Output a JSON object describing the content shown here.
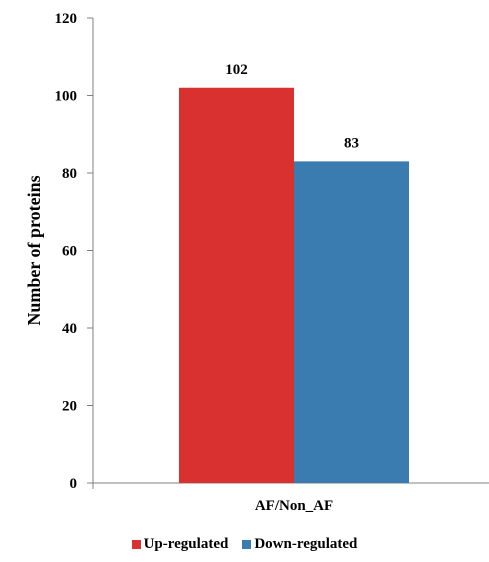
{
  "chart_data": {
    "type": "bar",
    "categories": [
      "AF/Non_AF"
    ],
    "series": [
      {
        "name": "Up-regulated",
        "values": [
          102
        ],
        "color": "#d93030"
      },
      {
        "name": "Down-regulated",
        "values": [
          83
        ],
        "color": "#3a7cb0"
      }
    ],
    "data_labels": [
      "102",
      "83"
    ],
    "ylabel": "Number of proteins",
    "xlabel": "",
    "ylim": [
      0,
      120
    ],
    "yticks": [
      "0",
      "20",
      "40",
      "60",
      "80",
      "100",
      "120"
    ],
    "grid": false,
    "legend_position": "bottom"
  }
}
